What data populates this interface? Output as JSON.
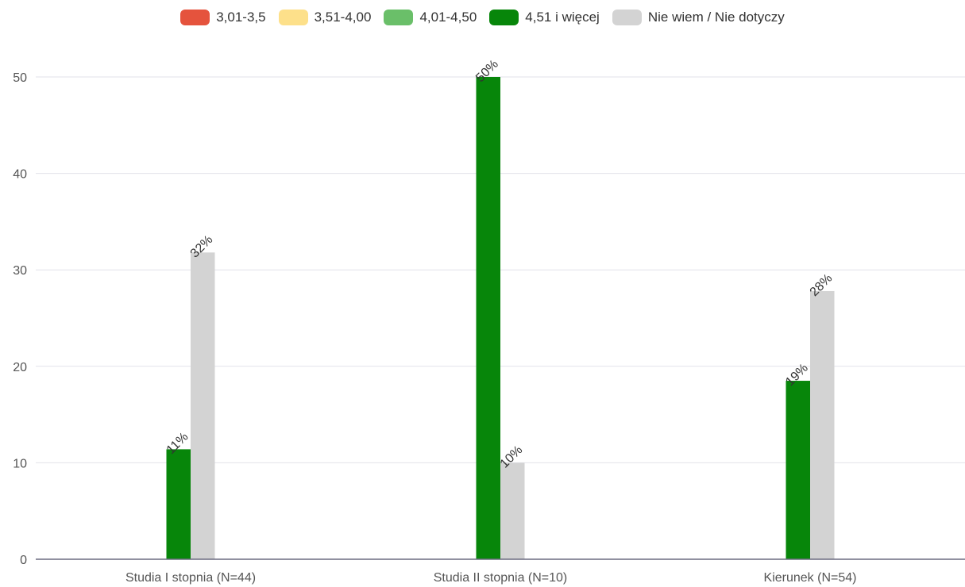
{
  "chart_data": {
    "type": "bar",
    "categories": [
      "Studia I stopnia (N=44)",
      "Studia II stopnia (N=10)",
      "Kierunek (N=54)"
    ],
    "series": [
      {
        "name": "3,01-3,5",
        "color": "#e5533d",
        "values": [
          0,
          0,
          0
        ]
      },
      {
        "name": "3,51-4,00",
        "color": "#fde08a",
        "values": [
          0,
          0,
          0
        ]
      },
      {
        "name": "4,01-4,50",
        "color": "#6abf69",
        "values": [
          0,
          0,
          0
        ]
      },
      {
        "name": "4,51 i więcej",
        "color": "#07860a",
        "values": [
          11.4,
          50,
          18.5
        ]
      },
      {
        "name": "Nie wiem / Nie dotyczy",
        "color": "#d3d3d3",
        "values": [
          31.8,
          10,
          27.8
        ]
      }
    ],
    "data_labels": [
      [
        "",
        "",
        "",
        "11%",
        "32%"
      ],
      [
        "",
        "",
        "",
        "50%",
        "10%"
      ],
      [
        "",
        "",
        "",
        "19%",
        "28%"
      ]
    ],
    "ylim": [
      0,
      50
    ],
    "yticks": [
      "0",
      "10",
      "20",
      "30",
      "40",
      "50"
    ],
    "grid": true,
    "legend_position": "top"
  }
}
